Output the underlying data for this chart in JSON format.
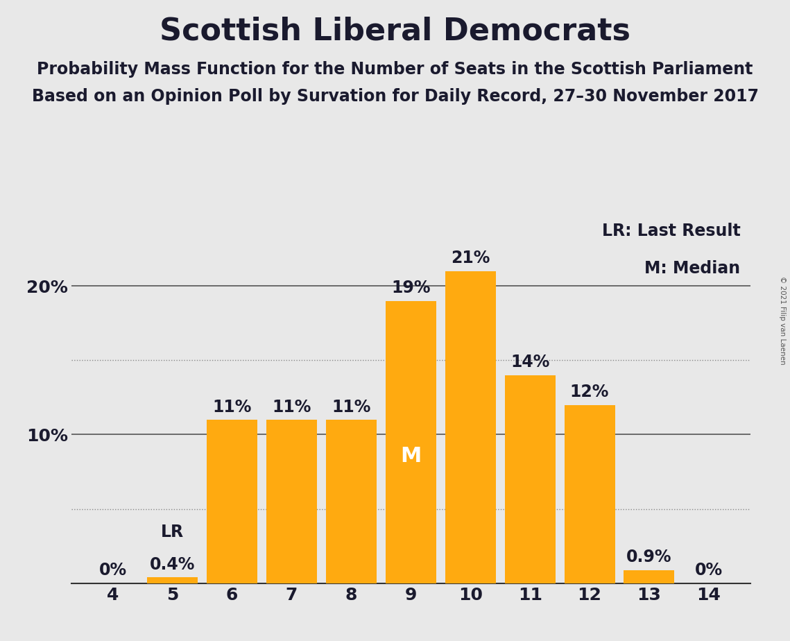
{
  "title": "Scottish Liberal Democrats",
  "subtitle1": "Probability Mass Function for the Number of Seats in the Scottish Parliament",
  "subtitle2": "Based on an Opinion Poll by Survation for Daily Record, 27–30 November 2017",
  "copyright": "© 2021 Filip van Laenen",
  "seats": [
    4,
    5,
    6,
    7,
    8,
    9,
    10,
    11,
    12,
    13,
    14
  ],
  "values": [
    0.0,
    0.4,
    11.0,
    11.0,
    11.0,
    19.0,
    21.0,
    14.0,
    12.0,
    0.9,
    0.0
  ],
  "bar_color": "#FFAA10",
  "background_color": "#E8E8E8",
  "text_color": "#1a1a2e",
  "label_texts": [
    "0%",
    "0.4%",
    "11%",
    "11%",
    "11%",
    "19%",
    "21%",
    "14%",
    "12%",
    "0.9%",
    "0%"
  ],
  "median_seat": 9,
  "lr_seat": 5,
  "legend_lr": "LR: Last Result",
  "legend_m": "M: Median",
  "ylim": [
    0,
    25
  ],
  "solid_yticks": [
    10,
    20
  ],
  "dotted_yticks": [
    5,
    15
  ],
  "title_fontsize": 32,
  "subtitle_fontsize": 17,
  "label_fontsize": 17,
  "axis_fontsize": 18
}
